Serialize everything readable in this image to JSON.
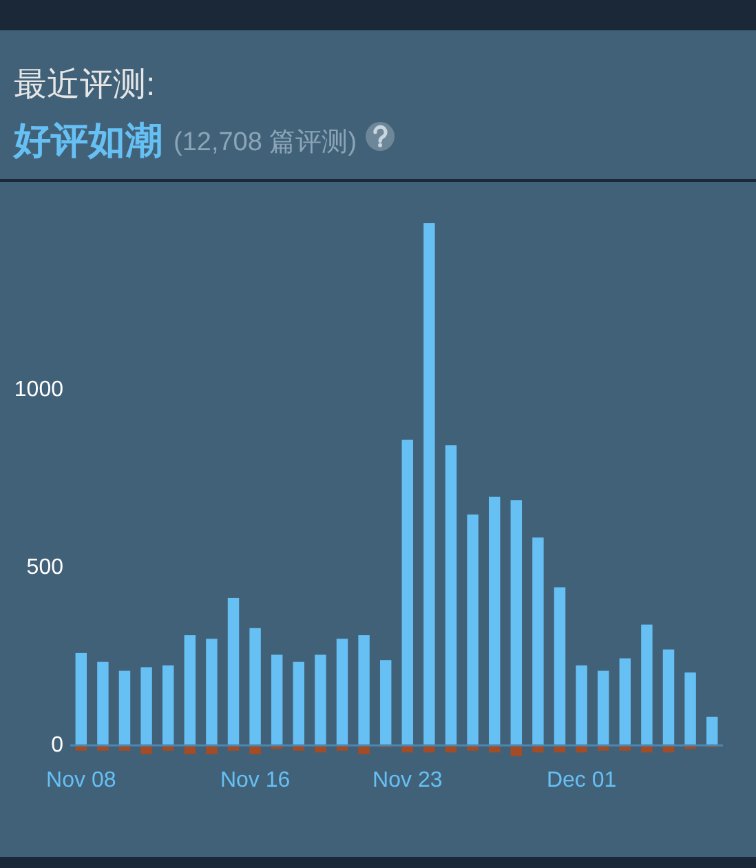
{
  "chart_data": {
    "type": "bar",
    "title": "最近评测:",
    "subtitle": "好评如潮",
    "annotations": [
      "(12,708 篇评测)"
    ],
    "categories": [
      "Nov 08",
      null,
      null,
      null,
      null,
      null,
      null,
      null,
      "Nov 16",
      null,
      null,
      null,
      null,
      null,
      null,
      "Nov 23",
      null,
      null,
      null,
      null,
      null,
      null,
      null,
      "Dec 01",
      null,
      null,
      null,
      null,
      null,
      null
    ],
    "series": [
      {
        "color": "#66c0f4",
        "values": [
          260,
          235,
          210,
          220,
          225,
          310,
          300,
          415,
          330,
          255,
          235,
          255,
          300,
          310,
          240,
          860,
          1470,
          845,
          650,
          700,
          690,
          585,
          445,
          225,
          210,
          245,
          340,
          270,
          205,
          80
        ]
      },
      {
        "color": "#a34c25",
        "values": [
          -15,
          -15,
          -15,
          -25,
          -15,
          -25,
          -25,
          -15,
          -25,
          -10,
          -15,
          -20,
          -15,
          -25,
          -5,
          -20,
          -20,
          -20,
          -15,
          -20,
          -30,
          -20,
          -20,
          -20,
          -15,
          -15,
          -20,
          -20,
          -10,
          -5
        ]
      }
    ],
    "stacked": true,
    "ylim": [
      -30,
      1470
    ],
    "yticks": [
      0,
      500,
      1000
    ]
  }
}
